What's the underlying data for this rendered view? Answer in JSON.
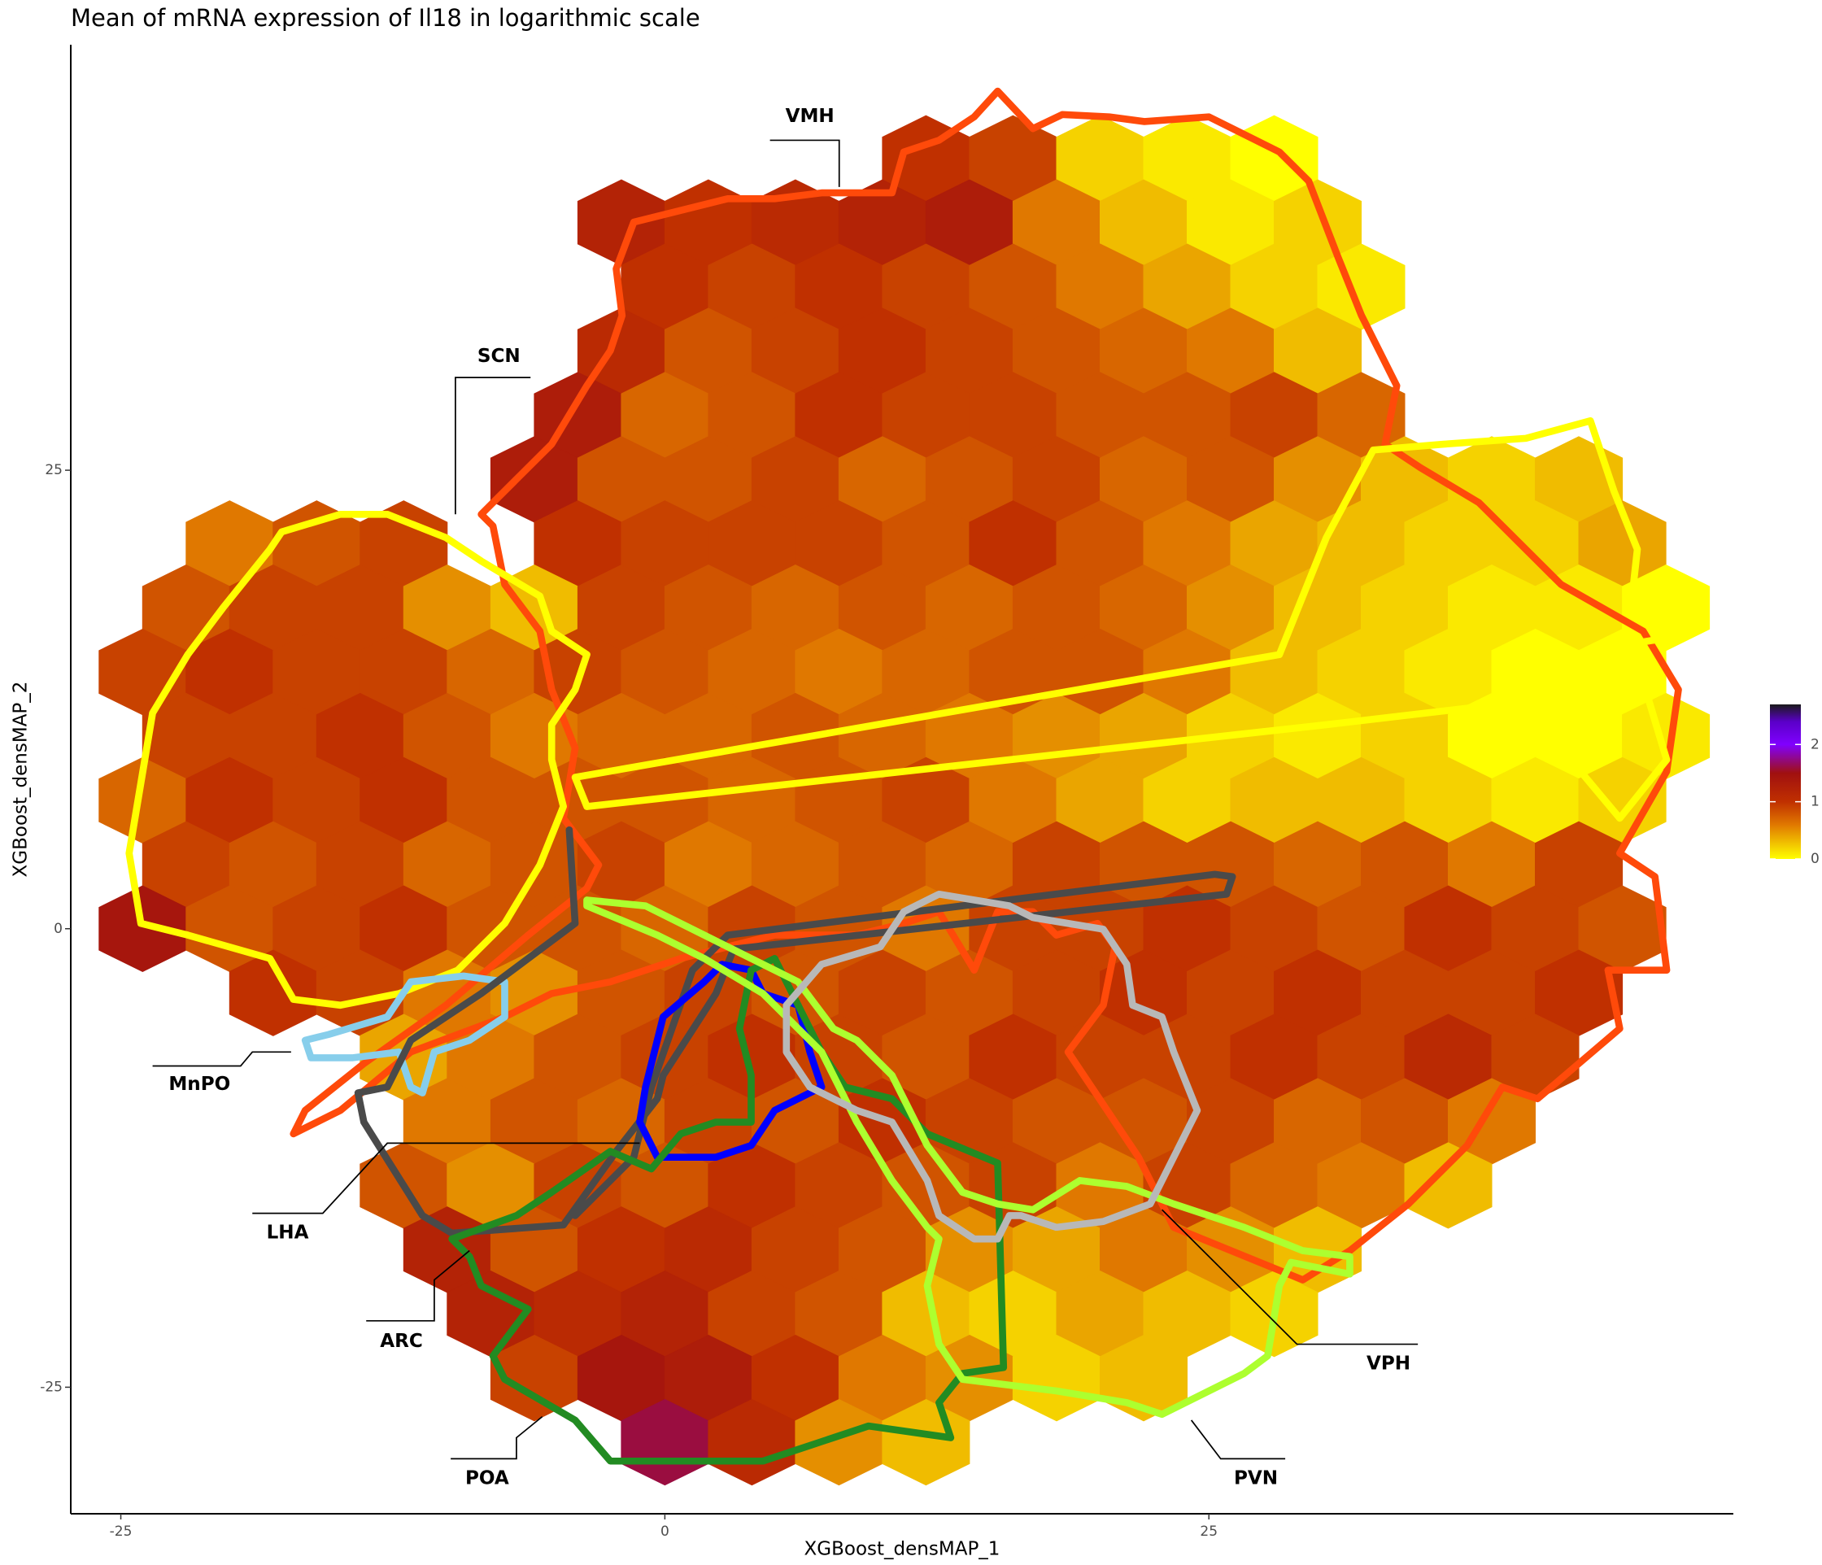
{
  "chart_data": {
    "type": "hexbin",
    "title": "Mean of mRNA expression of Il18 in logarithmic scale",
    "x_label": "XGBoost_densMAP_1",
    "y_label": "XGBoost_densMAP_2",
    "xlim": [
      -27.3,
      49.1
    ],
    "ylim": [
      -31.9,
      48.2
    ],
    "xticks": [
      -25,
      0,
      25
    ],
    "yticks": [
      -25,
      0,
      25
    ],
    "grid": false,
    "colorbar": {
      "lim": [
        0,
        2.7
      ],
      "ticks": [
        0,
        1,
        2
      ]
    },
    "colorscale": [
      [
        0,
        "#ffff00"
      ],
      [
        0.6,
        "#e07800"
      ],
      [
        1,
        "#c03000"
      ],
      [
        1.5,
        "#a01010"
      ],
      [
        2,
        "#8000ff"
      ],
      [
        2.4,
        "#5a00c8"
      ],
      [
        2.7,
        "#1a1a1a"
      ]
    ],
    "rows": [
      {
        "y": 42,
        "x": [
          12,
          16,
          20,
          24,
          28
        ],
        "values": [
          1.0,
          0.9,
          0.2,
          0.1,
          0.0
        ]
      },
      {
        "y": 38.5,
        "x": [
          -2,
          2,
          6,
          10,
          14,
          18,
          22,
          26,
          30
        ],
        "values": [
          1.2,
          1.0,
          1.1,
          1.2,
          1.3,
          0.6,
          0.3,
          0.1,
          0.2
        ]
      },
      {
        "y": 35,
        "x": [
          0,
          4,
          8,
          12,
          16,
          20,
          24,
          28,
          32
        ],
        "values": [
          1.0,
          0.9,
          1.0,
          0.9,
          0.8,
          0.6,
          0.4,
          0.2,
          0.1
        ]
      },
      {
        "y": 31.5,
        "x": [
          -2,
          2,
          6,
          10,
          14,
          18,
          22,
          26,
          30
        ],
        "values": [
          1.1,
          0.8,
          0.9,
          1.0,
          0.9,
          0.8,
          0.7,
          0.6,
          0.3
        ]
      },
      {
        "y": 28,
        "x": [
          -4,
          0,
          4,
          8,
          12,
          16,
          20,
          24,
          28,
          32
        ],
        "values": [
          1.3,
          0.7,
          0.8,
          1.0,
          0.9,
          0.9,
          0.8,
          0.8,
          0.9,
          0.7
        ]
      },
      {
        "y": 24.5,
        "x": [
          -6,
          -2,
          2,
          6,
          10,
          14,
          18,
          22,
          26,
          30,
          34,
          38,
          42
        ],
        "values": [
          1.3,
          0.8,
          0.8,
          0.9,
          0.7,
          0.8,
          0.9,
          0.7,
          0.8,
          0.5,
          0.3,
          0.2,
          0.3
        ]
      },
      {
        "y": 21,
        "x": [
          -20,
          -16,
          -12,
          -4,
          0,
          4,
          8,
          12,
          16,
          20,
          24,
          28,
          32,
          36,
          40,
          44
        ],
        "values": [
          0.6,
          0.8,
          0.9,
          1.0,
          0.9,
          0.9,
          0.9,
          0.8,
          1.0,
          0.8,
          0.6,
          0.4,
          0.3,
          0.2,
          0.2,
          0.4
        ]
      },
      {
        "y": 17.5,
        "x": [
          -22,
          -18,
          -14,
          -10,
          -6,
          -2,
          2,
          6,
          10,
          14,
          18,
          22,
          26,
          30,
          34,
          38,
          42,
          46
        ],
        "values": [
          0.8,
          0.9,
          0.9,
          0.5,
          0.3,
          0.9,
          0.8,
          0.7,
          0.8,
          0.7,
          0.8,
          0.7,
          0.5,
          0.3,
          0.2,
          0.1,
          0.1,
          0.0
        ]
      },
      {
        "y": 14,
        "x": [
          -24,
          -20,
          -16,
          -12,
          -8,
          -4,
          0,
          4,
          8,
          12,
          16,
          20,
          24,
          28,
          32,
          36,
          40,
          44
        ],
        "values": [
          0.9,
          1.0,
          0.9,
          0.9,
          0.7,
          0.9,
          0.8,
          0.7,
          0.6,
          0.7,
          0.8,
          0.8,
          0.6,
          0.3,
          0.2,
          0.1,
          0.0,
          0.0
        ]
      },
      {
        "y": 10.5,
        "x": [
          -22,
          -18,
          -14,
          -10,
          -6,
          -2,
          2,
          6,
          10,
          14,
          18,
          22,
          26,
          30,
          34,
          38,
          42,
          46
        ],
        "values": [
          0.9,
          0.9,
          1.0,
          0.8,
          0.6,
          0.7,
          0.7,
          0.8,
          0.7,
          0.6,
          0.5,
          0.4,
          0.2,
          0.1,
          0.2,
          0.0,
          0.0,
          0.1
        ]
      },
      {
        "y": 7,
        "x": [
          -24,
          -20,
          -16,
          -12,
          -8,
          -4,
          0,
          4,
          8,
          12,
          16,
          20,
          24,
          28,
          32,
          36,
          40,
          44
        ],
        "values": [
          0.7,
          1.0,
          0.9,
          1.0,
          0.8,
          0.8,
          0.8,
          0.7,
          0.8,
          0.9,
          0.6,
          0.4,
          0.2,
          0.3,
          0.3,
          0.2,
          0.1,
          0.2
        ]
      },
      {
        "y": 3.5,
        "x": [
          -22,
          -18,
          -14,
          -10,
          -6,
          -2,
          2,
          6,
          10,
          14,
          18,
          22,
          26,
          30,
          34,
          38,
          42
        ],
        "values": [
          0.9,
          0.8,
          0.9,
          0.7,
          0.8,
          0.9,
          0.6,
          0.7,
          0.8,
          0.7,
          0.9,
          0.8,
          0.8,
          0.7,
          0.8,
          0.6,
          0.9
        ]
      },
      {
        "y": 0,
        "x": [
          -24,
          -20,
          -16,
          -12,
          -8,
          -4,
          0,
          4,
          8,
          12,
          16,
          20,
          24,
          28,
          32,
          36,
          40,
          44
        ],
        "values": [
          1.4,
          0.8,
          0.9,
          1.0,
          0.8,
          0.8,
          0.7,
          0.9,
          0.8,
          0.6,
          0.9,
          0.9,
          1.0,
          0.9,
          0.8,
          1.0,
          0.9,
          0.8
        ]
      },
      {
        "y": -3.5,
        "x": [
          -18,
          -14,
          -10,
          -6,
          -2,
          2,
          6,
          10,
          14,
          18,
          22,
          26,
          30,
          34,
          38,
          42
        ],
        "values": [
          1.0,
          0.9,
          0.6,
          0.5,
          0.8,
          0.9,
          0.8,
          0.9,
          0.8,
          0.9,
          1.0,
          0.9,
          1.0,
          0.9,
          0.9,
          1.0
        ]
      },
      {
        "y": -7,
        "x": [
          -12,
          -8,
          -4,
          0,
          4,
          8,
          12,
          16,
          20,
          24,
          28,
          32,
          36,
          40
        ],
        "values": [
          0.4,
          0.6,
          0.8,
          0.9,
          1.0,
          0.9,
          0.8,
          1.0,
          0.9,
          0.9,
          1.0,
          0.9,
          1.1,
          0.9
        ]
      },
      {
        "y": -10.5,
        "x": [
          -10,
          -6,
          -2,
          2,
          6,
          10,
          14,
          18,
          22,
          26,
          30,
          34,
          38
        ],
        "values": [
          0.6,
          0.8,
          0.7,
          0.9,
          0.8,
          1.0,
          0.9,
          0.8,
          0.8,
          0.9,
          0.7,
          0.8,
          0.6
        ]
      },
      {
        "y": -14,
        "x": [
          -12,
          -8,
          -4,
          0,
          4,
          8,
          12,
          16,
          20,
          24,
          28,
          32,
          36
        ],
        "values": [
          0.8,
          0.5,
          0.9,
          0.8,
          1.0,
          0.9,
          0.8,
          0.9,
          0.6,
          0.9,
          0.7,
          0.6,
          0.3
        ]
      },
      {
        "y": -17.5,
        "x": [
          -10,
          -6,
          -2,
          2,
          6,
          10,
          14,
          18,
          22,
          26,
          30
        ],
        "values": [
          1.2,
          0.8,
          1.0,
          1.1,
          0.9,
          0.8,
          0.5,
          0.4,
          0.6,
          0.5,
          0.3
        ]
      },
      {
        "y": -21,
        "x": [
          -8,
          -4,
          0,
          4,
          8,
          12,
          16,
          20,
          24,
          28
        ],
        "values": [
          1.2,
          1.1,
          1.2,
          0.9,
          0.8,
          0.3,
          0.2,
          0.4,
          0.3,
          0.2
        ]
      },
      {
        "y": -24.5,
        "x": [
          -6,
          -2,
          2,
          6,
          10,
          14,
          18,
          22
        ],
        "values": [
          0.9,
          1.4,
          1.3,
          1.0,
          0.6,
          0.5,
          0.2,
          0.3
        ]
      },
      {
        "y": -28,
        "x": [
          0,
          4,
          8,
          12
        ],
        "values": [
          1.6,
          1.1,
          0.5,
          0.3
        ]
      }
    ],
    "regions": [
      {
        "name": "VMH",
        "color": "#ff4a0a"
      },
      {
        "name": "SCN",
        "color": "#ffff00"
      },
      {
        "name": "MnPO",
        "color": "#87ceeb"
      },
      {
        "name": "LHA",
        "color": "#4a4a4a"
      },
      {
        "name": "ARC",
        "color": "#228b22"
      },
      {
        "name": "POA",
        "color": "#228b22"
      },
      {
        "name": "VPH",
        "color": "#b8b8b8"
      },
      {
        "name": "PVN",
        "color": "#adff2f"
      }
    ]
  }
}
